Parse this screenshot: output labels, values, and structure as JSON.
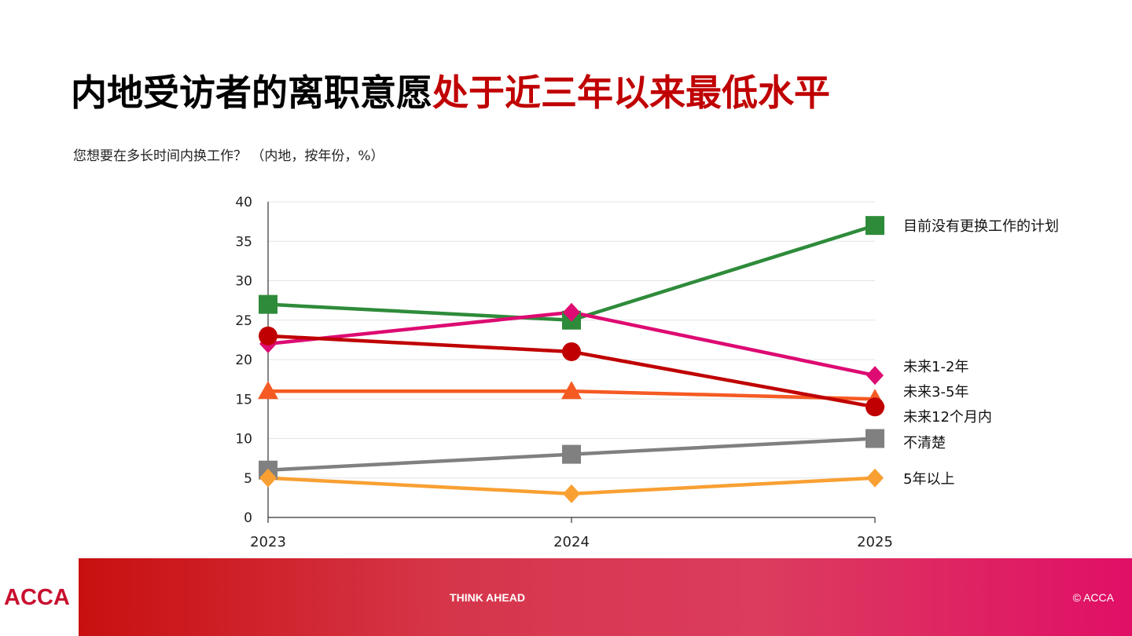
{
  "title": {
    "part1": "内地受访者的离职意愿",
    "part2": "处于近三年以来最低水平"
  },
  "subtitle": "您想要在多长时间内换工作？ （内地，按年份，%）",
  "chart_data": {
    "type": "line",
    "x": [
      "2023",
      "2024",
      "2025"
    ],
    "ylim": [
      0,
      40
    ],
    "yticks": [
      0,
      5,
      10,
      15,
      20,
      25,
      30,
      35,
      40
    ],
    "grid": true,
    "legend": "direct labels at right end of lines",
    "series": [
      {
        "name": "目前没有更换工作的计划",
        "values": [
          27,
          25,
          37
        ],
        "color": "#2e8b3a",
        "marker": "square"
      },
      {
        "name": "未来1-2年",
        "values": [
          22,
          26,
          18
        ],
        "color": "#dd0b72",
        "marker": "diamond"
      },
      {
        "name": "未来3-5年",
        "values": [
          16,
          16,
          15
        ],
        "color": "#f55a23",
        "marker": "triangle"
      },
      {
        "name": "未来12个月内",
        "values": [
          23,
          21,
          14
        ],
        "color": "#c00000",
        "marker": "circle"
      },
      {
        "name": "不清楚",
        "values": [
          6,
          8,
          10
        ],
        "color": "#808080",
        "marker": "square"
      },
      {
        "name": "5年以上",
        "values": [
          5,
          3,
          5
        ],
        "color": "#f8a033",
        "marker": "diamond"
      }
    ]
  },
  "footer": {
    "logo": "ACCA",
    "tagline": "THINK AHEAD",
    "copyright": "© ACCA"
  }
}
